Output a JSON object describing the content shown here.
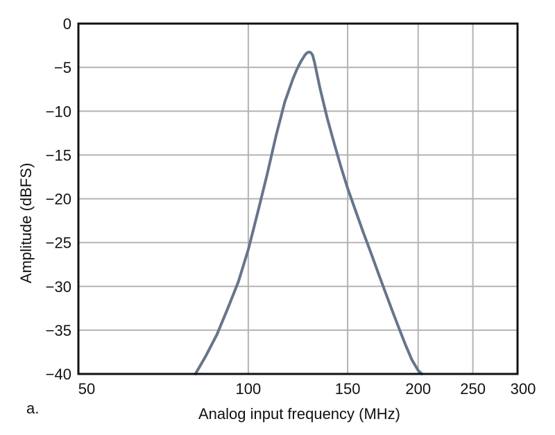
{
  "panel_label": "a.",
  "chart_data": {
    "type": "line",
    "title": "",
    "xlabel": "Analog input frequency (MHz)",
    "ylabel": "Amplitude (dBFS)",
    "x_scale": "log",
    "xlim": [
      50,
      300
    ],
    "ylim": [
      -40,
      0
    ],
    "x_ticks": [
      50,
      100,
      150,
      200,
      250,
      300
    ],
    "x_tick_labels": [
      "50",
      "100",
      "150",
      "200",
      "250",
      "300"
    ],
    "y_ticks": [
      0,
      -5,
      -10,
      -15,
      -20,
      -25,
      -30,
      -35,
      -40
    ],
    "y_tick_labels": [
      "0",
      "−5",
      "−10",
      "−15",
      "−20",
      "−25",
      "−30",
      "−35",
      "−40"
    ],
    "grid": true,
    "legend": false,
    "colors": {
      "line": "#66758a",
      "grid": "#b3b3b3",
      "frame": "#111111"
    },
    "series": [
      {
        "x": [
          80.6,
          84,
          88,
          92,
          96,
          100,
          104,
          108,
          112,
          116,
          120,
          122,
          124,
          126,
          127,
          128,
          129,
          130,
          131,
          134,
          138,
          142,
          146,
          150,
          155,
          160,
          165,
          170,
          175,
          180,
          185,
          190,
          195,
          200,
          203
        ],
        "y": [
          -40,
          -38,
          -35.5,
          -32.5,
          -29.5,
          -25.8,
          -21.5,
          -17.2,
          -12.8,
          -9.0,
          -6.3,
          -5.2,
          -4.3,
          -3.6,
          -3.35,
          -3.25,
          -3.3,
          -3.6,
          -4.4,
          -7.4,
          -10.8,
          -13.7,
          -16.4,
          -18.8,
          -21.4,
          -23.9,
          -26.2,
          -28.5,
          -30.7,
          -32.8,
          -34.8,
          -36.7,
          -38.4,
          -39.6,
          -40
        ]
      }
    ]
  }
}
